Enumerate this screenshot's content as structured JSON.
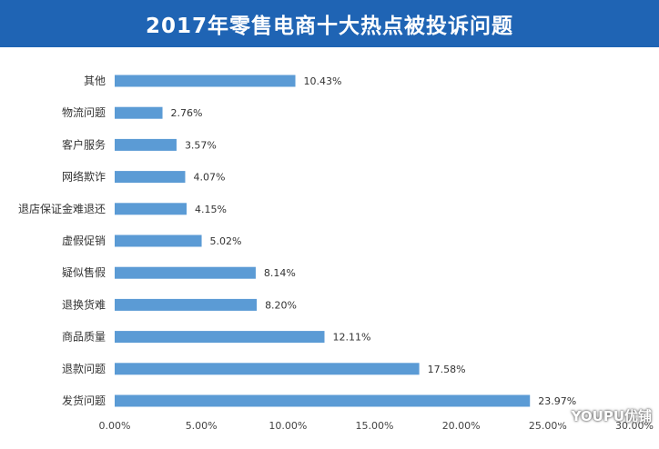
{
  "header": {
    "title": "2017年零售电商十大热点被投诉问题"
  },
  "watermark": {
    "text": "YOUPU优铺",
    "icon": "wechat-icon"
  },
  "colors": {
    "header_bg": "#1f64b4",
    "bar": "#5b9bd5"
  },
  "chart_data": {
    "type": "bar",
    "orientation": "horizontal",
    "categories": [
      "其他",
      "物流问题",
      "客户服务",
      "网络欺诈",
      "退店保证金难退还",
      "虚假促销",
      "疑似售假",
      "退换货难",
      "商品质量",
      "退款问题",
      "发货问题"
    ],
    "values": [
      10.43,
      2.76,
      3.57,
      4.07,
      4.15,
      5.02,
      8.14,
      8.2,
      12.11,
      17.58,
      23.97
    ],
    "value_labels": [
      "10.43%",
      "2.76%",
      "3.57%",
      "4.07%",
      "4.15%",
      "5.02%",
      "8.14%",
      "8.20%",
      "12.11%",
      "17.58%",
      "23.97%"
    ],
    "xlim": [
      0,
      30
    ],
    "xticks": [
      "0.00%",
      "5.00%",
      "10.00%",
      "15.00%",
      "20.00%",
      "25.00%",
      "30.00%"
    ],
    "title": "2017年零售电商十大热点被投诉问题",
    "grid": false
  }
}
